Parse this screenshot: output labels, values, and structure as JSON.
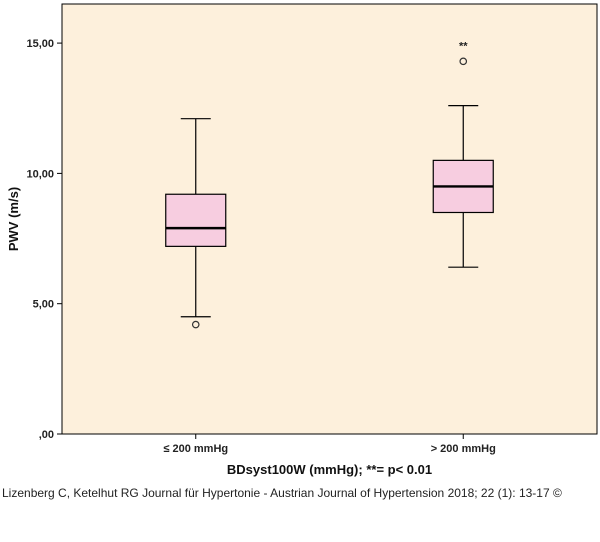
{
  "chart_data": {
    "type": "box",
    "ylabel": "PWV (m/s)",
    "xlabel": "BDsyst100W (mmHg); **= p< 0.01",
    "ylim": [
      0,
      16.5
    ],
    "yticks": [
      0,
      5,
      10,
      15
    ],
    "ytick_labels": [
      ",00",
      "5,00",
      "10,00",
      "15,00"
    ],
    "categories": [
      "≤ 200 mmHg",
      "> 200 mmHg"
    ],
    "boxes": [
      {
        "min": 4.5,
        "q1": 7.2,
        "median": 7.9,
        "q3": 9.2,
        "max": 12.1,
        "outliers": [
          4.2
        ],
        "annotation": ""
      },
      {
        "min": 6.4,
        "q1": 8.5,
        "median": 9.5,
        "q3": 10.5,
        "max": 12.6,
        "outliers": [
          14.3
        ],
        "annotation": "**"
      }
    ],
    "colors": {
      "plot_bg": "#fdf0dc",
      "box_fill": "#f7cde0",
      "stroke": "#000000"
    }
  },
  "caption": "Lizenberg C, Ketelhut RG Journal für Hypertonie - Austrian Journal of Hypertension 2018; 22 (1): 13-17 ©"
}
